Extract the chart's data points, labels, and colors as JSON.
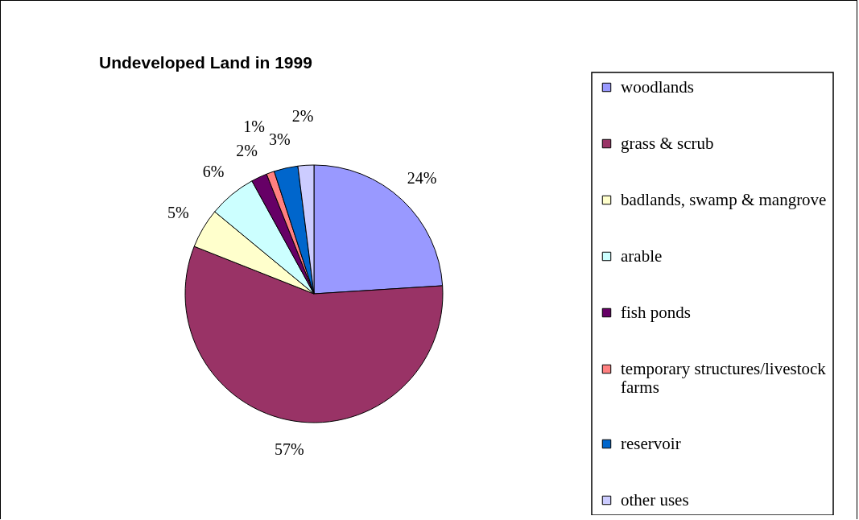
{
  "chart_data": {
    "type": "pie",
    "title": "Undeveloped Land in 1999",
    "categories": [
      "woodlands",
      "grass & scrub",
      "badlands, swamp & mangrove",
      "arable",
      "fish ponds",
      "temporary structures/livestock farms",
      "reservoir",
      "other uses"
    ],
    "values": [
      24,
      57,
      5,
      6,
      2,
      1,
      3,
      2
    ],
    "colors": [
      "#9999ff",
      "#993366",
      "#ffffcc",
      "#ccffff",
      "#660066",
      "#ff8080",
      "#0066cc",
      "#ccccff"
    ],
    "value_labels": [
      "24%",
      "57%",
      "5%",
      "6%",
      "2%",
      "1%",
      "3%",
      "2%"
    ],
    "legend": "right"
  }
}
